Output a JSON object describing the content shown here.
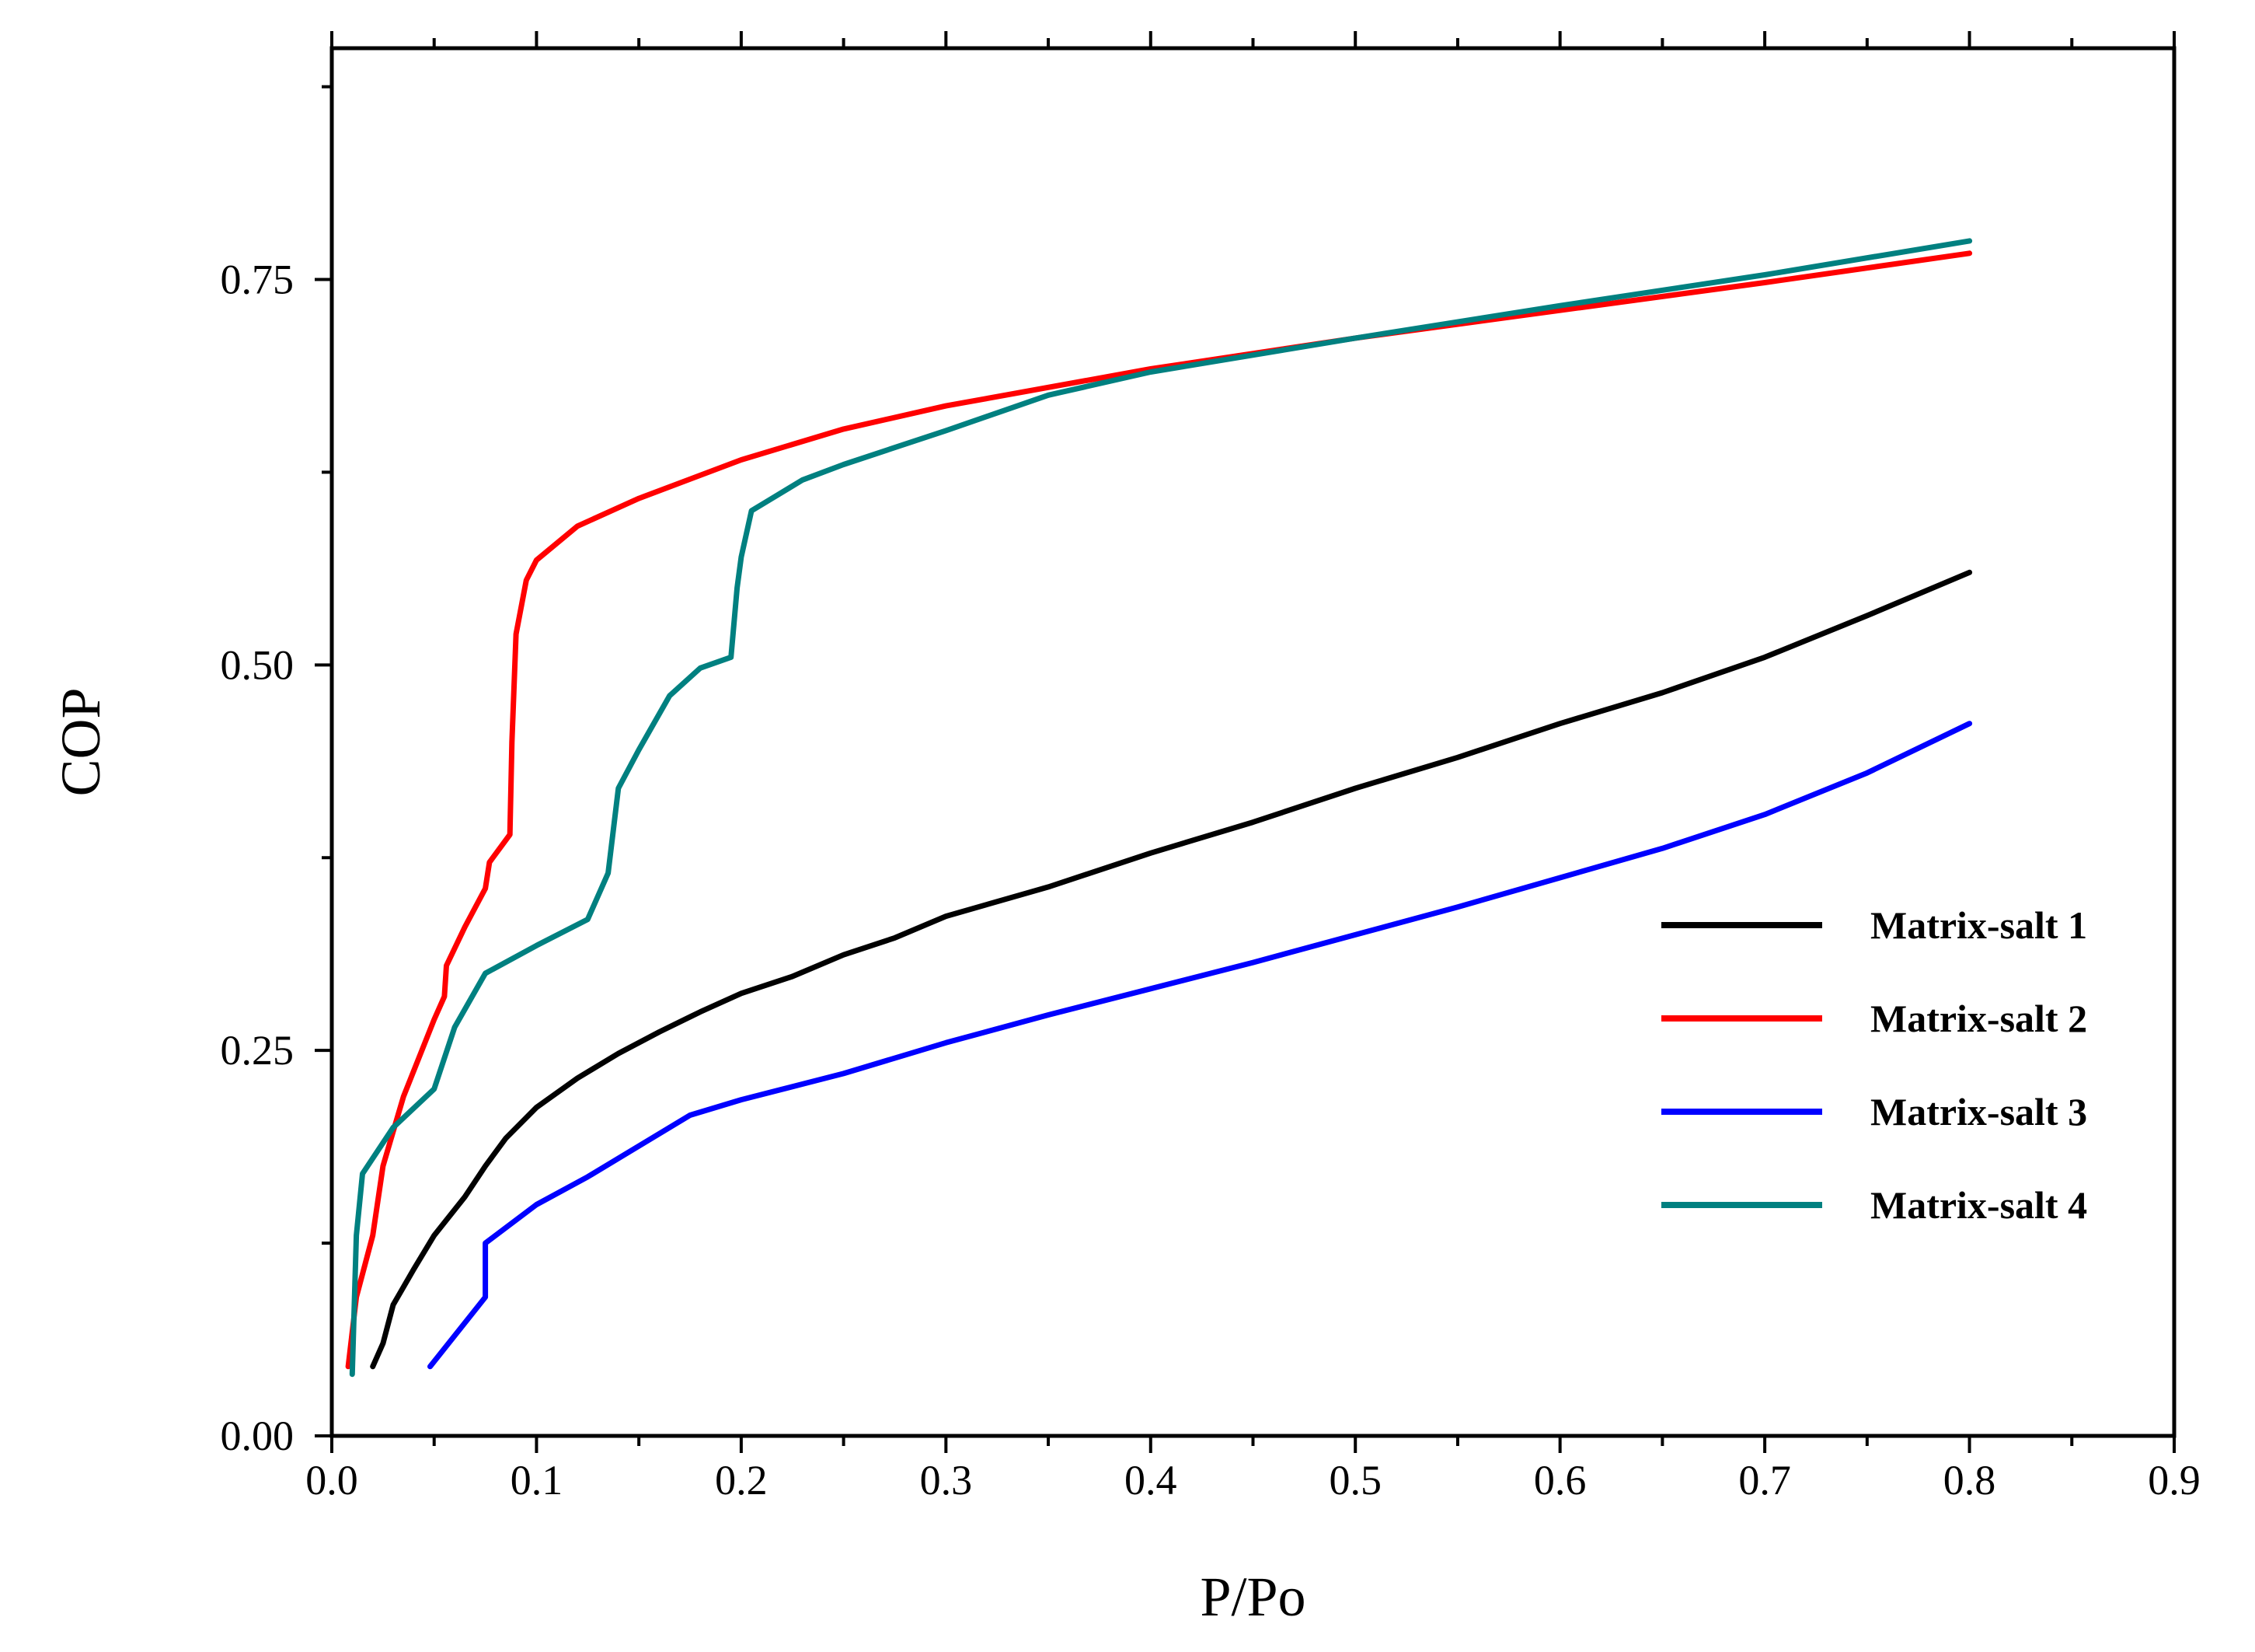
{
  "chart_data": {
    "type": "line",
    "title": "",
    "xlabel": "P/Po",
    "ylabel": "COP",
    "xlim": [
      0.0,
      0.9
    ],
    "ylim": [
      0.0,
      0.9
    ],
    "x_ticks": [
      0.0,
      0.1,
      0.2,
      0.3,
      0.4,
      0.5,
      0.6,
      0.7,
      0.8,
      0.9
    ],
    "x_tick_labels": [
      "0.0",
      "0.1",
      "0.2",
      "0.3",
      "0.4",
      "0.5",
      "0.6",
      "0.7",
      "0.8",
      "0.9"
    ],
    "y_ticks": [
      0.0,
      0.25,
      0.5,
      0.75
    ],
    "y_tick_labels": [
      "0.00",
      "0.25",
      "0.50",
      "0.75"
    ],
    "grid": false,
    "legend_position": "center-right",
    "series": [
      {
        "name": "Matrix-salt 1",
        "color": "#000000",
        "points": [
          [
            0.02,
            0.045
          ],
          [
            0.025,
            0.06
          ],
          [
            0.03,
            0.085
          ],
          [
            0.04,
            0.108
          ],
          [
            0.05,
            0.13
          ],
          [
            0.065,
            0.155
          ],
          [
            0.075,
            0.175
          ],
          [
            0.085,
            0.193
          ],
          [
            0.1,
            0.213
          ],
          [
            0.12,
            0.232
          ],
          [
            0.14,
            0.248
          ],
          [
            0.16,
            0.262
          ],
          [
            0.18,
            0.275
          ],
          [
            0.2,
            0.287
          ],
          [
            0.225,
            0.298
          ],
          [
            0.25,
            0.312
          ],
          [
            0.275,
            0.323
          ],
          [
            0.3,
            0.337
          ],
          [
            0.35,
            0.356
          ],
          [
            0.4,
            0.378
          ],
          [
            0.45,
            0.398
          ],
          [
            0.5,
            0.42
          ],
          [
            0.55,
            0.44
          ],
          [
            0.6,
            0.462
          ],
          [
            0.65,
            0.482
          ],
          [
            0.7,
            0.505
          ],
          [
            0.75,
            0.532
          ],
          [
            0.8,
            0.56
          ]
        ]
      },
      {
        "name": "Matrix-salt 2",
        "color": "#ff0000",
        "points": [
          [
            0.008,
            0.045
          ],
          [
            0.012,
            0.09
          ],
          [
            0.02,
            0.13
          ],
          [
            0.025,
            0.175
          ],
          [
            0.035,
            0.22
          ],
          [
            0.05,
            0.27
          ],
          [
            0.055,
            0.285
          ],
          [
            0.056,
            0.305
          ],
          [
            0.065,
            0.33
          ],
          [
            0.075,
            0.355
          ],
          [
            0.077,
            0.372
          ],
          [
            0.087,
            0.39
          ],
          [
            0.088,
            0.45
          ],
          [
            0.09,
            0.52
          ],
          [
            0.095,
            0.555
          ],
          [
            0.1,
            0.568
          ],
          [
            0.12,
            0.59
          ],
          [
            0.15,
            0.608
          ],
          [
            0.2,
            0.633
          ],
          [
            0.25,
            0.653
          ],
          [
            0.3,
            0.668
          ],
          [
            0.4,
            0.692
          ],
          [
            0.5,
            0.712
          ],
          [
            0.6,
            0.73
          ],
          [
            0.7,
            0.748
          ],
          [
            0.8,
            0.767
          ]
        ]
      },
      {
        "name": "Matrix-salt 3",
        "color": "#0000ff",
        "points": [
          [
            0.048,
            0.045
          ],
          [
            0.075,
            0.09
          ],
          [
            0.075,
            0.125
          ],
          [
            0.1,
            0.15
          ],
          [
            0.125,
            0.168
          ],
          [
            0.15,
            0.188
          ],
          [
            0.175,
            0.208
          ],
          [
            0.2,
            0.218
          ],
          [
            0.25,
            0.235
          ],
          [
            0.3,
            0.255
          ],
          [
            0.35,
            0.273
          ],
          [
            0.4,
            0.29
          ],
          [
            0.45,
            0.307
          ],
          [
            0.5,
            0.325
          ],
          [
            0.55,
            0.343
          ],
          [
            0.6,
            0.362
          ],
          [
            0.65,
            0.381
          ],
          [
            0.7,
            0.403
          ],
          [
            0.75,
            0.43
          ],
          [
            0.8,
            0.462
          ]
        ]
      },
      {
        "name": "Matrix-salt 4",
        "color": "#008080",
        "points": [
          [
            0.01,
            0.04
          ],
          [
            0.012,
            0.13
          ],
          [
            0.015,
            0.17
          ],
          [
            0.03,
            0.2
          ],
          [
            0.05,
            0.225
          ],
          [
            0.06,
            0.265
          ],
          [
            0.075,
            0.3
          ],
          [
            0.1,
            0.318
          ],
          [
            0.125,
            0.335
          ],
          [
            0.135,
            0.365
          ],
          [
            0.14,
            0.42
          ],
          [
            0.15,
            0.445
          ],
          [
            0.165,
            0.48
          ],
          [
            0.18,
            0.498
          ],
          [
            0.195,
            0.505
          ],
          [
            0.198,
            0.55
          ],
          [
            0.2,
            0.57
          ],
          [
            0.205,
            0.6
          ],
          [
            0.23,
            0.62
          ],
          [
            0.25,
            0.63
          ],
          [
            0.3,
            0.652
          ],
          [
            0.35,
            0.675
          ],
          [
            0.4,
            0.69
          ],
          [
            0.5,
            0.712
          ],
          [
            0.6,
            0.733
          ],
          [
            0.7,
            0.753
          ],
          [
            0.8,
            0.775
          ]
        ]
      }
    ]
  }
}
